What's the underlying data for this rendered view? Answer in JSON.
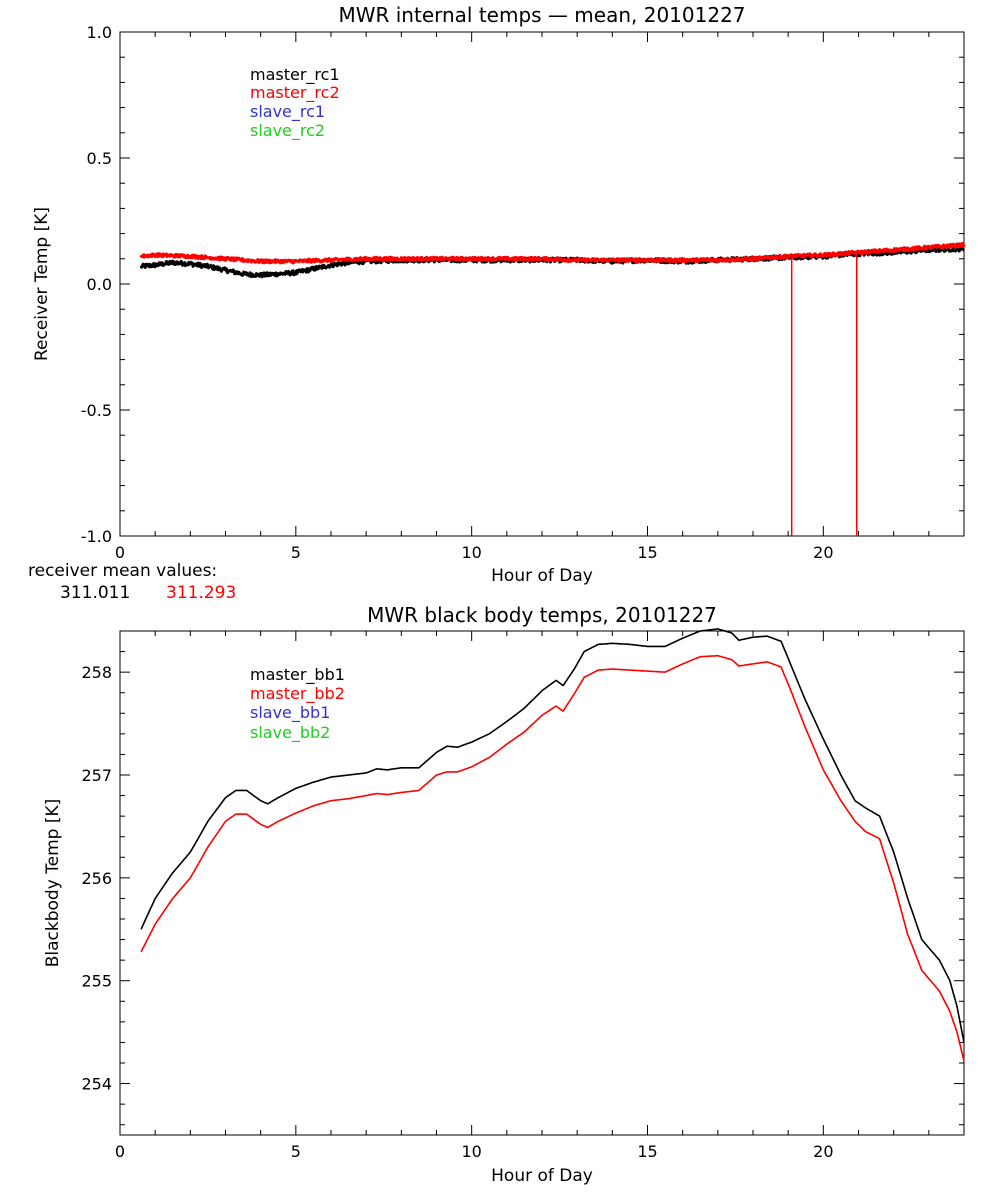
{
  "chart_data": [
    {
      "type": "line",
      "title": "MWR internal temps — mean, 20101227",
      "xlabel": "Hour of Day",
      "ylabel": "Receiver Temp [K]",
      "xlim": [
        0,
        24
      ],
      "ylim": [
        -1.0,
        1.0
      ],
      "xticks": [
        "0",
        "5",
        "10",
        "15",
        "20"
      ],
      "yticks": [
        "1.0",
        "0.5",
        "0.0",
        "-0.5",
        "-1.0"
      ],
      "legend": {
        "placement": "top-left"
      },
      "series": [
        {
          "name": "master_rc1",
          "color": "#000000",
          "noise": 0.008,
          "x": [
            0.6,
            1.0,
            1.5,
            2.0,
            2.5,
            3.0,
            3.5,
            4.0,
            4.5,
            5.0,
            5.5,
            6.0,
            6.5,
            7.0,
            8.0,
            9.0,
            10.0,
            11.0,
            12.0,
            13.0,
            14.0,
            15.0,
            16.0,
            17.0,
            18.0,
            19.0,
            20.0,
            21.0,
            22.0,
            23.0,
            24.0
          ],
          "y": [
            0.07,
            0.075,
            0.085,
            0.08,
            0.07,
            0.055,
            0.04,
            0.035,
            0.04,
            0.045,
            0.06,
            0.075,
            0.085,
            0.09,
            0.095,
            0.095,
            0.095,
            0.095,
            0.095,
            0.095,
            0.09,
            0.095,
            0.09,
            0.095,
            0.1,
            0.105,
            0.11,
            0.12,
            0.125,
            0.135,
            0.14
          ]
        },
        {
          "name": "master_rc2",
          "color": "#ff0000",
          "noise": 0.006,
          "x": [
            0.6,
            1.0,
            2.0,
            3.0,
            4.0,
            5.0,
            6.0,
            7.0,
            8.0,
            9.0,
            10.0,
            11.0,
            12.0,
            13.0,
            14.0,
            15.0,
            16.0,
            17.0,
            18.0,
            19.0,
            20.0,
            21.0,
            22.0,
            23.0,
            24.0
          ],
          "y": [
            0.11,
            0.115,
            0.11,
            0.1,
            0.09,
            0.09,
            0.095,
            0.1,
            0.1,
            0.1,
            0.1,
            0.1,
            0.1,
            0.095,
            0.095,
            0.095,
            0.095,
            0.095,
            0.1,
            0.11,
            0.115,
            0.125,
            0.135,
            0.145,
            0.155
          ],
          "spikes": [
            {
              "x": 19.1,
              "ymin": -1.0,
              "ymax": 0.11
            },
            {
              "x": 20.95,
              "ymin": -1.0,
              "ymax": 0.12
            }
          ]
        },
        {
          "name": "slave_rc1",
          "color": "#3333cc",
          "x": [],
          "y": []
        },
        {
          "name": "slave_rc2",
          "color": "#22cc22",
          "x": [],
          "y": []
        }
      ]
    },
    {
      "type": "line",
      "title": "MWR black body temps, 20101227",
      "xlabel": "Hour of Day",
      "ylabel": "Blackbody Temp [K]",
      "xlim": [
        0,
        24
      ],
      "ylim": [
        253.5,
        258.4
      ],
      "xticks": [
        "0",
        "5",
        "10",
        "15",
        "20"
      ],
      "yticks": [
        "258",
        "257",
        "256",
        "255",
        "254"
      ],
      "legend": {
        "placement": "top-left"
      },
      "series": [
        {
          "name": "master_bb1",
          "color": "#000000",
          "x": [
            0.6,
            1.0,
            1.5,
            2.0,
            2.5,
            3.0,
            3.3,
            3.6,
            4.0,
            4.2,
            4.5,
            5.0,
            5.5,
            6.0,
            6.5,
            7.0,
            7.3,
            7.6,
            8.0,
            8.5,
            9.0,
            9.3,
            9.6,
            10.0,
            10.5,
            11.0,
            11.5,
            12.0,
            12.4,
            12.6,
            12.9,
            13.2,
            13.6,
            14.0,
            14.5,
            15.0,
            15.5,
            16.0,
            16.5,
            17.0,
            17.4,
            17.6,
            18.0,
            18.4,
            18.8,
            19.1,
            19.5,
            20.0,
            20.5,
            20.9,
            21.2,
            21.6,
            22.0,
            22.4,
            22.8,
            23.3,
            23.6,
            23.8,
            24.0
          ],
          "y": [
            255.5,
            255.8,
            256.05,
            256.25,
            256.55,
            256.78,
            256.85,
            256.85,
            256.75,
            256.72,
            256.78,
            256.87,
            256.93,
            256.98,
            257.0,
            257.02,
            257.06,
            257.05,
            257.07,
            257.07,
            257.22,
            257.28,
            257.27,
            257.32,
            257.4,
            257.52,
            257.65,
            257.82,
            257.92,
            257.87,
            258.02,
            258.2,
            258.27,
            258.28,
            258.27,
            258.25,
            258.25,
            258.33,
            258.4,
            258.42,
            258.38,
            258.31,
            258.34,
            258.35,
            258.3,
            258.05,
            257.72,
            257.35,
            257.0,
            256.75,
            256.68,
            256.6,
            256.25,
            255.8,
            255.4,
            255.2,
            255.0,
            254.75,
            254.4
          ]
        },
        {
          "name": "master_bb2",
          "color": "#ff0000",
          "x": [
            0.6,
            1.0,
            1.5,
            2.0,
            2.5,
            3.0,
            3.3,
            3.6,
            4.0,
            4.2,
            4.5,
            5.0,
            5.5,
            6.0,
            6.5,
            7.0,
            7.3,
            7.6,
            8.0,
            8.5,
            9.0,
            9.3,
            9.6,
            10.0,
            10.5,
            11.0,
            11.5,
            12.0,
            12.4,
            12.6,
            12.9,
            13.2,
            13.6,
            14.0,
            14.5,
            15.0,
            15.5,
            16.0,
            16.5,
            17.0,
            17.4,
            17.6,
            18.0,
            18.4,
            18.8,
            19.1,
            19.5,
            20.0,
            20.5,
            20.9,
            21.2,
            21.6,
            22.0,
            22.4,
            22.8,
            23.3,
            23.6,
            23.8,
            24.0
          ],
          "y": [
            255.28,
            255.55,
            255.8,
            256.0,
            256.3,
            256.55,
            256.62,
            256.62,
            256.52,
            256.49,
            256.55,
            256.63,
            256.7,
            256.75,
            256.77,
            256.8,
            256.82,
            256.81,
            256.83,
            256.85,
            257.0,
            257.03,
            257.03,
            257.08,
            257.17,
            257.3,
            257.42,
            257.58,
            257.67,
            257.62,
            257.78,
            257.95,
            258.02,
            258.03,
            258.02,
            258.01,
            258.0,
            258.08,
            258.15,
            258.16,
            258.12,
            258.06,
            258.08,
            258.1,
            258.05,
            257.8,
            257.45,
            257.05,
            256.75,
            256.55,
            256.45,
            256.38,
            255.95,
            255.45,
            255.1,
            254.9,
            254.7,
            254.5,
            254.22
          ]
        },
        {
          "name": "slave_bb1",
          "color": "#3333cc",
          "x": [],
          "y": []
        },
        {
          "name": "slave_bb2",
          "color": "#22cc22",
          "x": [],
          "y": []
        }
      ]
    }
  ],
  "receiver_mean": {
    "label": "receiver mean values:",
    "value1": "311.011",
    "value2": "311.293",
    "color1": "#000000",
    "color2": "#ff0000"
  }
}
